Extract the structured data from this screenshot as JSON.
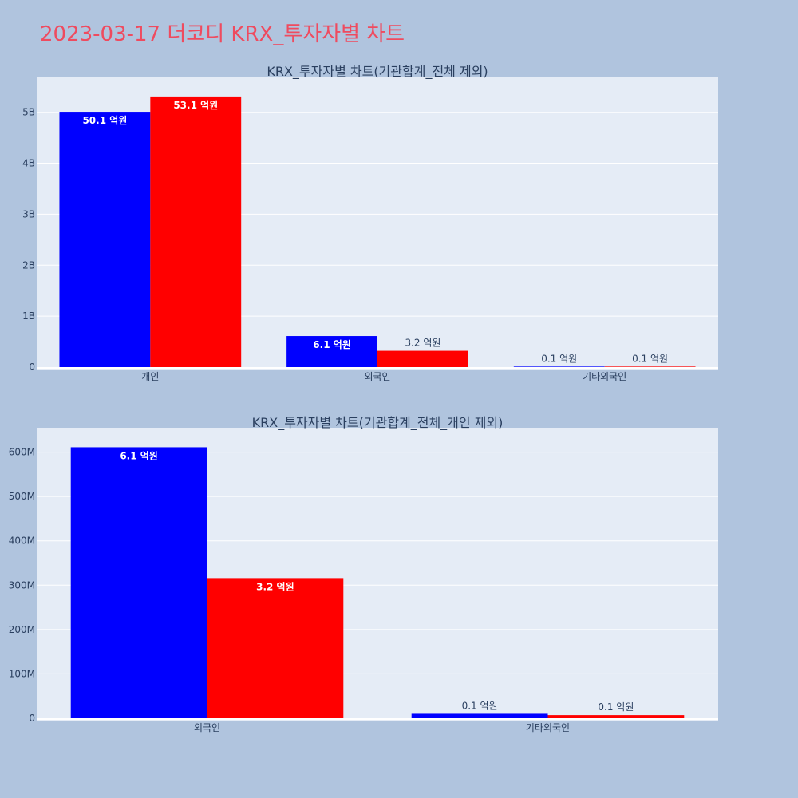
{
  "page_title": "2023-03-17 더코디 KRX_투자자별 차트",
  "colors": {
    "background": "#b0c4de",
    "plot_bg": "#e5ecf6",
    "title": "#ef4b5f",
    "series_a": "#0000ff",
    "series_b": "#ff0000",
    "text": "#2a3f5f"
  },
  "chart_data": [
    {
      "type": "bar",
      "title": "KRX_투자자별 차트(기관합계_전체 제외)",
      "categories": [
        "개인",
        "외국인",
        "기타외국인"
      ],
      "series": [
        {
          "color": "#0000ff",
          "values": [
            5010000000,
            610000000,
            10000000
          ],
          "labels": [
            "50.1 억원",
            "6.1 억원",
            "0.1 억원"
          ]
        },
        {
          "color": "#ff0000",
          "values": [
            5310000000,
            320000000,
            10000000
          ],
          "labels": [
            "53.1 억원",
            "3.2 억원",
            "0.1 억원"
          ]
        }
      ],
      "yticks": [
        0,
        1000000000,
        2000000000,
        3000000000,
        4000000000,
        5000000000
      ],
      "ytick_labels": [
        "0",
        "1B",
        "2B",
        "3B",
        "4B",
        "5B"
      ],
      "ylim": [
        0,
        5700000000
      ],
      "grid": true
    },
    {
      "type": "bar",
      "title": "KRX_투자자별 차트(기관합계_전체_개인 제외)",
      "categories": [
        "외국인",
        "기타외국인"
      ],
      "series": [
        {
          "color": "#0000ff",
          "values": [
            611000000,
            10000000
          ],
          "labels": [
            "6.1 억원",
            "0.1 억원"
          ]
        },
        {
          "color": "#ff0000",
          "values": [
            316000000,
            7000000
          ],
          "labels": [
            "3.2 억원",
            "0.1 억원"
          ]
        }
      ],
      "yticks": [
        0,
        100000000,
        200000000,
        300000000,
        400000000,
        500000000,
        600000000
      ],
      "ytick_labels": [
        "0",
        "100M",
        "200M",
        "300M",
        "400M",
        "500M",
        "600M"
      ],
      "ylim": [
        0,
        655000000
      ],
      "grid": true
    }
  ]
}
